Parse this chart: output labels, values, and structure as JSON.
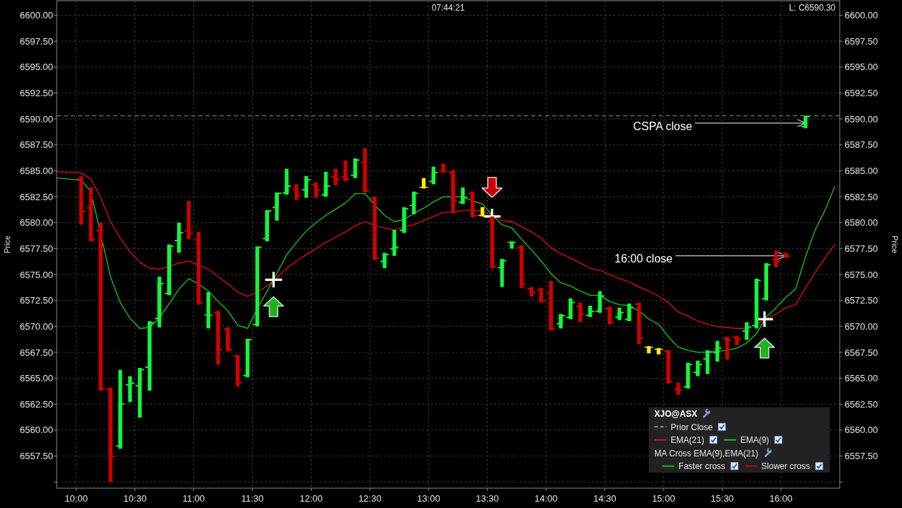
{
  "chart_data": {
    "type": "candlestick",
    "x": [
      10.0417,
      10.125,
      10.2083,
      10.2917,
      10.375,
      10.4583,
      10.5417,
      10.625,
      10.7083,
      10.7917,
      10.875,
      10.9583,
      11.0417,
      11.125,
      11.2083,
      11.2917,
      11.375,
      11.4583,
      11.5417,
      11.625,
      11.7083,
      11.7917,
      11.875,
      11.9583,
      12.0417,
      12.125,
      12.2083,
      12.2917,
      12.375,
      12.4583,
      12.5417,
      12.625,
      12.7083,
      12.7917,
      12.875,
      12.9583,
      13.0417,
      13.125,
      13.2083,
      13.2917,
      13.375,
      13.4583,
      13.5417,
      13.625,
      13.7083,
      13.7917,
      13.875,
      13.9583,
      14.0417,
      14.125,
      14.2083,
      14.2917,
      14.375,
      14.4583,
      14.5417,
      14.625,
      14.7083,
      14.7917,
      14.875,
      14.9583,
      15.0417,
      15.125,
      15.2083,
      15.2917,
      15.375,
      15.4583,
      15.5417,
      15.625,
      15.7083,
      15.7917,
      15.875,
      15.9583,
      16.0417,
      16.2083
    ],
    "ohlc": [
      [
        6584.3,
        6584.5,
        6579.8,
        6581.0
      ],
      [
        6581.5,
        6583.4,
        6578.2,
        6578.3
      ],
      [
        6579.3,
        6580.0,
        6563.8,
        6563.9
      ],
      [
        6564.0,
        6564.1,
        6555.0,
        6557.4
      ],
      [
        6558.4,
        6565.8,
        6558.2,
        6562.6
      ],
      [
        6564.3,
        6565.2,
        6562.7,
        6564.6
      ],
      [
        6564.2,
        6566.0,
        6561.2,
        6565.9
      ],
      [
        6566.0,
        6570.5,
        6563.8,
        6570.4
      ],
      [
        6570.7,
        6574.8,
        6569.9,
        6574.2
      ],
      [
        6573.1,
        6577.9,
        6573.0,
        6577.8
      ],
      [
        6578.2,
        6580.0,
        6577.1,
        6579.1
      ],
      [
        6579.3,
        6582.1,
        6578.4,
        6578.9
      ],
      [
        6578.4,
        6579.1,
        6572.1,
        6572.2
      ],
      [
        6571.0,
        6573.3,
        6569.8,
        6571.1
      ],
      [
        6571.4,
        6571.5,
        6566.3,
        6567.7
      ],
      [
        6569.8,
        6569.9,
        6567.6,
        6567.7
      ],
      [
        6567.2,
        6567.2,
        6564.2,
        6564.5
      ],
      [
        6565.2,
        6568.8,
        6565.1,
        6568.8
      ],
      [
        6570.1,
        6577.7,
        6570.0,
        6577.7
      ],
      [
        6578.4,
        6581.2,
        6578.2,
        6581.2
      ],
      [
        6581.4,
        6582.9,
        6580.2,
        6582.9
      ],
      [
        6582.8,
        6585.2,
        6582.7,
        6583.6
      ],
      [
        6583.3,
        6583.7,
        6582.2,
        6582.5
      ],
      [
        6583.1,
        6584.5,
        6582.4,
        6584.2
      ],
      [
        6583.7,
        6583.9,
        6582.4,
        6583.1
      ],
      [
        6582.6,
        6584.9,
        6582.5,
        6583.6
      ],
      [
        6584.5,
        6585.2,
        6583.6,
        6584.1
      ],
      [
        6584.5,
        6586.0,
        6584.0,
        6584.1
      ],
      [
        6584.5,
        6586.2,
        6584.3,
        6586.1
      ],
      [
        6585.9,
        6587.2,
        6582.9,
        6583.0
      ],
      [
        6582.4,
        6582.5,
        6576.4,
        6576.5
      ],
      [
        6576.2,
        6577.1,
        6575.6,
        6577.0
      ],
      [
        6577.4,
        6579.3,
        6576.8,
        6577.7
      ],
      [
        6579.2,
        6581.5,
        6579.0,
        6581.4
      ],
      [
        6581.6,
        6583.0,
        6580.8,
        6582.9
      ],
      [
        6583.4,
        6584.3,
        6583.3,
        6583.4
      ],
      [
        6583.9,
        6585.4,
        6583.7,
        6584.9
      ],
      [
        6585.0,
        6585.7,
        6584.8,
        6584.9
      ],
      [
        6584.9,
        6585.1,
        6580.9,
        6582.0
      ],
      [
        6581.9,
        6583.4,
        6581.8,
        6582.5
      ],
      [
        6582.9,
        6583.0,
        6580.5,
        6580.6
      ],
      [
        6580.7,
        6581.5,
        6580.6,
        6580.7
      ],
      [
        6580.2,
        6580.6,
        6575.6,
        6575.7
      ],
      [
        6575.6,
        6576.5,
        6573.8,
        6576.4
      ],
      [
        6578.0,
        6578.2,
        6577.5,
        6578.1
      ],
      [
        6577.7,
        6577.8,
        6573.7,
        6574.0
      ],
      [
        6573.7,
        6573.8,
        6572.9,
        6573.2
      ],
      [
        6573.6,
        6573.7,
        6572.3,
        6572.4
      ],
      [
        6573.3,
        6574.4,
        6569.6,
        6569.7
      ],
      [
        6570.2,
        6571.2,
        6569.8,
        6571.1
      ],
      [
        6570.8,
        6572.7,
        6570.7,
        6572.4
      ],
      [
        6572.0,
        6572.3,
        6570.4,
        6571.1
      ],
      [
        6571.0,
        6572.0,
        6570.9,
        6571.5
      ],
      [
        6571.4,
        6573.4,
        6571.3,
        6573.0
      ],
      [
        6571.8,
        6571.9,
        6570.2,
        6570.3
      ],
      [
        6570.8,
        6571.8,
        6570.6,
        6571.4
      ],
      [
        6570.6,
        6572.2,
        6570.5,
        6571.9
      ],
      [
        6572.2,
        6572.3,
        6568.3,
        6568.8
      ],
      [
        6568.0,
        6568.1,
        6567.4,
        6568.0
      ],
      [
        6567.8,
        6567.9,
        6567.3,
        6567.8
      ],
      [
        6567.7,
        6567.7,
        6564.5,
        6564.6
      ],
      [
        6564.0,
        6564.6,
        6563.4,
        6563.8
      ],
      [
        6564.1,
        6566.5,
        6564.0,
        6566.4
      ],
      [
        6565.5,
        6566.7,
        6565.2,
        6566.4
      ],
      [
        6566.8,
        6567.7,
        6565.4,
        6567.6
      ],
      [
        6567.4,
        6568.6,
        6566.6,
        6568.0
      ],
      [
        6568.9,
        6569.0,
        6566.8,
        6568.6
      ],
      [
        6569.0,
        6569.1,
        6568.2,
        6568.7
      ],
      [
        6569.5,
        6570.4,
        6568.7,
        6570.0
      ],
      [
        6570.0,
        6574.6,
        6569.8,
        6574.5
      ],
      [
        6572.6,
        6576.1,
        6572.5,
        6576.0
      ],
      [
        6576.5,
        6577.3,
        6575.7,
        6576.2
      ],
      [
        6577.0,
        6577.1,
        6576.6,
        6576.7
      ],
      [
        6589.2,
        6590.3,
        6589.1,
        6590.3
      ]
    ],
    "colors": [
      "#d00000",
      "#d00000",
      "#d00000",
      "#d00000",
      "#14f53c",
      "#14f53c",
      "#14f53c",
      "#14f53c",
      "#14f53c",
      "#14f53c",
      "#14f53c",
      "#d00000",
      "#d00000",
      "#14f53c",
      "#d00000",
      "#d00000",
      "#d00000",
      "#14f53c",
      "#14f53c",
      "#14f53c",
      "#14f53c",
      "#14f53c",
      "#d00000",
      "#14f53c",
      "#d00000",
      "#14f53c",
      "#d00000",
      "#d00000",
      "#14f53c",
      "#d00000",
      "#d00000",
      "#14f53c",
      "#14f53c",
      "#14f53c",
      "#14f53c",
      "#ffee00",
      "#14f53c",
      "#d00000",
      "#d00000",
      "#14f53c",
      "#d00000",
      "#ffee00",
      "#d00000",
      "#14f53c",
      "#14f53c",
      "#d00000",
      "#d00000",
      "#d00000",
      "#d00000",
      "#14f53c",
      "#14f53c",
      "#d00000",
      "#14f53c",
      "#14f53c",
      "#d00000",
      "#14f53c",
      "#14f53c",
      "#d00000",
      "#ffee00",
      "#ffee00",
      "#d00000",
      "#d00000",
      "#14f53c",
      "#14f53c",
      "#14f53c",
      "#14f53c",
      "#d00000",
      "#d00000",
      "#14f53c",
      "#14f53c",
      "#14f53c",
      "#d00000",
      "#d00000",
      "#14f53c"
    ],
    "series": [
      {
        "name": "EMA(21)",
        "type": "line",
        "color": "#e01010",
        "x": [
          9.8333,
          10.0417,
          10.125,
          10.2083,
          10.2917,
          10.375,
          10.4583,
          10.5417,
          10.625,
          10.7083,
          10.7917,
          10.875,
          10.9583,
          11.0417,
          11.125,
          11.2083,
          11.2917,
          11.375,
          11.4583,
          11.5417,
          11.625,
          11.7083,
          11.7917,
          11.875,
          11.9583,
          12.0417,
          12.125,
          12.2083,
          12.2917,
          12.375,
          12.4583,
          12.5417,
          12.625,
          12.7083,
          12.7917,
          12.875,
          12.9583,
          13.0417,
          13.125,
          13.2083,
          13.2917,
          13.375,
          13.4583,
          13.5417,
          13.625,
          13.7083,
          13.7917,
          13.875,
          13.9583,
          14.0417,
          14.125,
          14.2083,
          14.2917,
          14.375,
          14.4583,
          14.5417,
          14.625,
          14.7083,
          14.7917,
          14.875,
          14.9583,
          15.0417,
          15.125,
          15.2083,
          15.2917,
          15.375,
          15.4583,
          15.5417,
          15.625,
          15.7083,
          15.7917,
          15.875,
          15.9583,
          16.0417,
          16.125,
          16.2083,
          16.2917,
          16.375,
          16.4583
        ],
        "values": [
          6584.9,
          6584.8,
          6584.2,
          6582.4,
          6580.1,
          6578.5,
          6577.2,
          6576.2,
          6575.6,
          6575.5,
          6575.8,
          6576.1,
          6576.3,
          6575.9,
          6575.5,
          6574.8,
          6574.1,
          6573.3,
          6572.9,
          6573.3,
          6573.9,
          6574.7,
          6575.6,
          6576.3,
          6576.9,
          6577.5,
          6578.1,
          6578.6,
          6579.1,
          6579.7,
          6580.1,
          6579.7,
          6579.5,
          6579.3,
          6579.6,
          6579.8,
          6580.2,
          6580.6,
          6581.0,
          6581.0,
          6581.2,
          6581.2,
          6581.1,
          6580.7,
          6580.2,
          6580.1,
          6579.6,
          6579.1,
          6578.5,
          6577.6,
          6577.0,
          6576.6,
          6576.1,
          6575.6,
          6575.4,
          6575.0,
          6574.6,
          6574.3,
          6573.8,
          6573.4,
          6572.9,
          6572.3,
          6571.4,
          6571.0,
          6570.5,
          6570.2,
          6570.0,
          6569.9,
          6569.8,
          6569.8,
          6570.2,
          6570.7,
          6571.2,
          6571.8,
          6572.1,
          6573.7,
          6575.2,
          6576.6,
          6577.9
        ]
      },
      {
        "name": "EMA(9)",
        "type": "line",
        "color": "#16cc16",
        "x": [
          9.8333,
          10.0417,
          10.125,
          10.2083,
          10.2917,
          10.375,
          10.4583,
          10.5417,
          10.625,
          10.7083,
          10.7917,
          10.875,
          10.9583,
          11.0417,
          11.125,
          11.2083,
          11.2917,
          11.375,
          11.4583,
          11.5417,
          11.625,
          11.7083,
          11.7917,
          11.875,
          11.9583,
          12.0417,
          12.125,
          12.2083,
          12.2917,
          12.375,
          12.4583,
          12.5417,
          12.625,
          12.7083,
          12.7917,
          12.875,
          12.9583,
          13.0417,
          13.125,
          13.2083,
          13.2917,
          13.375,
          13.4583,
          13.5417,
          13.625,
          13.7083,
          13.7917,
          13.875,
          13.9583,
          14.0417,
          14.125,
          14.2083,
          14.2917,
          14.375,
          14.4583,
          14.5417,
          14.625,
          14.7083,
          14.7917,
          14.875,
          14.9583,
          15.0417,
          15.125,
          15.2083,
          15.2917,
          15.375,
          15.4583,
          15.5417,
          15.625,
          15.7083,
          15.7917,
          15.875,
          15.9583,
          16.0417,
          16.125,
          16.2083,
          16.2917,
          16.375,
          16.4583
        ],
        "values": [
          6584.3,
          6584.1,
          6583.0,
          null,
          6574.8,
          6572.3,
          6570.8,
          6569.8,
          6569.9,
          6570.8,
          6572.2,
          6573.6,
          6574.6,
          6574.1,
          6573.4,
          6572.4,
          6571.5,
          6570.1,
          6569.8,
          6571.7,
          6573.4,
          6575.1,
          6576.9,
          6578.1,
          6579.2,
          6580.0,
          6580.7,
          6581.3,
          6581.9,
          6582.8,
          6582.8,
          6581.7,
          6580.7,
          6580.1,
          6580.3,
          6580.9,
          6581.4,
          6582.0,
          6582.5,
          6582.5,
          6582.5,
          6582.1,
          6581.8,
          6580.7,
          6579.8,
          6579.5,
          6578.4,
          6577.4,
          6576.3,
          6575.1,
          6574.2,
          6573.9,
          6573.4,
          6573.0,
          6573.0,
          6572.4,
          6572.1,
          6572.0,
          6571.5,
          6570.7,
          6570.2,
          6569.0,
          6568.0,
          6567.7,
          6567.5,
          6567.5,
          6567.6,
          6567.7,
          6567.9,
          6568.4,
          6569.3,
          6570.9,
          6571.8,
          6572.8,
          6573.6,
          6576.7,
          6579.3,
          6581.2,
          6583.5
        ]
      },
      {
        "type": "scatter",
        "color": "#ffffff",
        "marker": "cross",
        "x": [
          11.68,
          13.54,
          15.86
        ],
        "values": [
          6574.5,
          6580.6,
          6570.7
        ]
      },
      {
        "name": "Faster cross",
        "type": "scatter",
        "color": "#1db41d",
        "marker": "triangle",
        "x": [
          11.68,
          15.86
        ],
        "values": [
          6571.9,
          6567.9
        ]
      },
      {
        "name": "Slower cross",
        "type": "scatter",
        "color": "#c80000",
        "marker": "triangle",
        "x": [
          13.54
        ],
        "values": [
          6583.4
        ]
      }
    ],
    "xlim": [
      9.8333,
      16.5
    ],
    "xticks": [
      {
        "value": 10,
        "label": "10:00"
      },
      {
        "value": 10.5,
        "label": "10:30"
      },
      {
        "value": 11,
        "label": "11:00"
      },
      {
        "value": 11.5,
        "label": "11:30"
      },
      {
        "value": 12,
        "label": "12:00"
      },
      {
        "value": 12.5,
        "label": "12:30"
      },
      {
        "value": 13,
        "label": "13:00"
      },
      {
        "value": 13.5,
        "label": "13:30"
      },
      {
        "value": 14,
        "label": "14:00"
      },
      {
        "value": 14.5,
        "label": "14:30"
      },
      {
        "value": 15,
        "label": "15:00"
      },
      {
        "value": 15.5,
        "label": "15:30"
      },
      {
        "value": 16,
        "label": "16:00"
      }
    ],
    "ylim": [
      6554.4,
      6601.4
    ],
    "yticks": [
      {
        "value": 6555,
        "label": null
      },
      {
        "value": 6557.5,
        "label": "6557.50"
      },
      {
        "value": 6560,
        "label": "6560.00"
      },
      {
        "value": 6562.5,
        "label": "6562.50"
      },
      {
        "value": 6565,
        "label": "6565.00"
      },
      {
        "value": 6567.5,
        "label": "6567.50"
      },
      {
        "value": 6570,
        "label": "6570.00"
      },
      {
        "value": 6572.5,
        "label": "6572.50"
      },
      {
        "value": 6575,
        "label": "6575.00"
      },
      {
        "value": 6577.5,
        "label": "6577.50"
      },
      {
        "value": 6580,
        "label": "6580.00"
      },
      {
        "value": 6582.5,
        "label": "6582.50"
      },
      {
        "value": 6585,
        "label": "6585.00"
      },
      {
        "value": 6587.5,
        "label": "6587.50"
      },
      {
        "value": 6590,
        "label": "6590.00"
      },
      {
        "value": 6592.5,
        "label": "6592.50"
      },
      {
        "value": 6595,
        "label": "6595.00"
      },
      {
        "value": 6597.5,
        "label": "6597.50"
      },
      {
        "value": 6600,
        "label": "6600.00"
      }
    ],
    "y2lim": [
      6554.4,
      6601.4
    ],
    "y2ticks": [
      {
        "value": 6555,
        "label": null
      },
      {
        "value": 6557.5,
        "label": "6557.50"
      },
      {
        "value": 6560,
        "label": "6560.00"
      },
      {
        "value": 6562.5,
        "label": "6562.50"
      },
      {
        "value": 6565,
        "label": "6565.00"
      },
      {
        "value": 6567.5,
        "label": "6567.50"
      },
      {
        "value": 6570,
        "label": "6570.00"
      },
      {
        "value": 6572.5,
        "label": "6572.50"
      },
      {
        "value": 6575,
        "label": "6575.00"
      },
      {
        "value": 6577.5,
        "label": "6577.50"
      },
      {
        "value": 6580,
        "label": "6580.00"
      },
      {
        "value": 6582.5,
        "label": "6582.50"
      },
      {
        "value": 6585,
        "label": "6585.00"
      },
      {
        "value": 6587.5,
        "label": "6587.50"
      },
      {
        "value": 6590,
        "label": "6590.00"
      },
      {
        "value": 6592.5,
        "label": "6592.50"
      },
      {
        "value": 6595,
        "label": "6595.00"
      },
      {
        "value": 6597.5,
        "label": "6597.50"
      },
      {
        "value": 6600,
        "label": "6600.00"
      }
    ],
    "ylabel": "Price",
    "y2label": "Price",
    "grid": true,
    "legend": "bottom right",
    "legend_title": "XJO@ASX",
    "ref_lines": [
      {
        "axis": "y",
        "value": 6590.3,
        "label": "Prior Close",
        "color": "#8c8c8c",
        "line_style": "dashed"
      }
    ],
    "annotations": [
      "07:44:21",
      "L: C6590.30",
      "MA Cross EMA(9),EMA(21)",
      {
        "text": "CSPA close",
        "x": 16.2083,
        "y": 6589.6
      },
      {
        "text": "16:00 close",
        "x": 16.0417,
        "y": 6576.8
      }
    ]
  }
}
